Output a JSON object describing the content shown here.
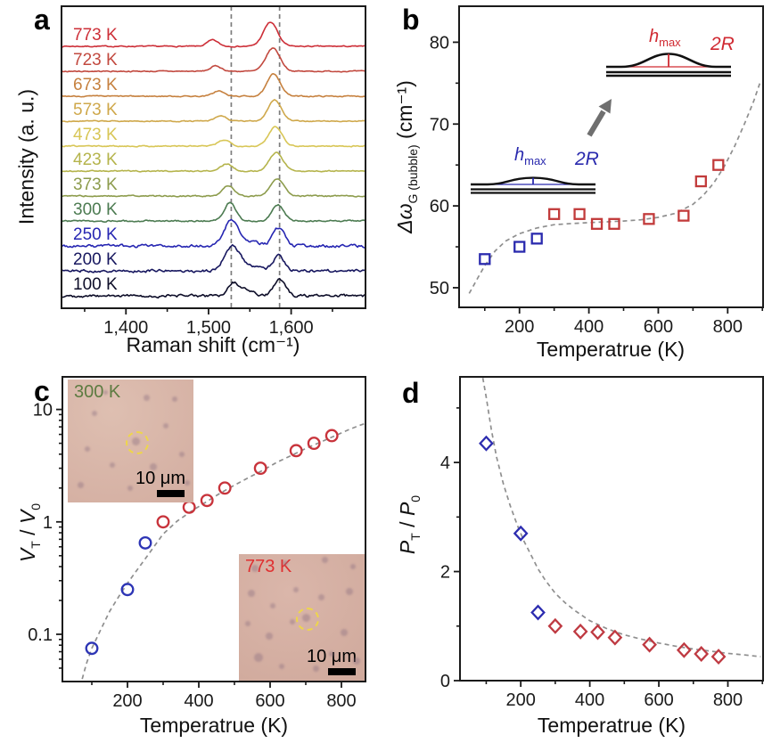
{
  "figure": {
    "background": "#ffffff"
  },
  "panels": {
    "a": {
      "letter": "a",
      "chart_data": {
        "type": "line",
        "title": "",
        "xlabel": "Raman shift (cm⁻¹)",
        "ylabel": "Intensity (a. u.)",
        "xlim": [
          1322,
          1690
        ],
        "xticks": [
          {
            "v": 1400,
            "label": "1,400"
          },
          {
            "v": 1500,
            "label": "1,500"
          },
          {
            "v": 1600,
            "label": "1,600"
          }
        ],
        "xminor": [
          1350,
          1450,
          1550,
          1650
        ],
        "guides_x": [
          1527.5,
          1586
        ],
        "series_note": "stacked Raman spectra, top to bottom; peaks = [center cm-1, width, rel height]",
        "series": [
          {
            "label": "773 K",
            "color": "#cd2f38",
            "noise": 0.5,
            "peaks": [
              [
                1505,
                6.5,
                7
              ],
              [
                1575,
                8.5,
                27
              ]
            ]
          },
          {
            "label": "723 K",
            "color": "#c2493f",
            "noise": 0.5,
            "peaks": [
              [
                1509,
                6.5,
                6
              ],
              [
                1578,
                8.5,
                26
              ]
            ]
          },
          {
            "label": "673 K",
            "color": "#c6813f",
            "noise": 0.5,
            "peaks": [
              [
                1512,
                6.5,
                6
              ],
              [
                1579,
                8,
                25
              ]
            ]
          },
          {
            "label": "573 K",
            "color": "#cfa84b",
            "noise": 0.5,
            "peaks": [
              [
                1515,
                6.5,
                6
              ],
              [
                1580,
                8,
                24
              ]
            ]
          },
          {
            "label": "473 K",
            "color": "#d8c656",
            "noise": 0.55,
            "peaks": [
              [
                1519,
                7,
                7
              ],
              [
                1581,
                8,
                22
              ]
            ]
          },
          {
            "label": "423 K",
            "color": "#b5b44c",
            "noise": 0.55,
            "peaks": [
              [
                1522,
                7,
                8
              ],
              [
                1582,
                8,
                21
              ]
            ]
          },
          {
            "label": "373 K",
            "color": "#8d9c4d",
            "noise": 0.6,
            "peaks": [
              [
                1524,
                7,
                12
              ],
              [
                1583,
                8,
                20
              ]
            ]
          },
          {
            "label": "300 K",
            "color": "#4c7b51",
            "noise": 0.7,
            "peaks": [
              [
                1526,
                7,
                21
              ],
              [
                1584,
                7,
                18
              ]
            ]
          },
          {
            "label": "250 K",
            "color": "#2626b2",
            "noise": 1.3,
            "peaks": [
              [
                1527,
                8,
                27
              ],
              [
                1545,
                13,
                6
              ],
              [
                1585,
                7,
                20
              ]
            ]
          },
          {
            "label": "200 K",
            "color": "#17175f",
            "noise": 1.3,
            "peaks": [
              [
                1528,
                9,
                26
              ],
              [
                1548,
                13,
                6
              ],
              [
                1585,
                7,
                17
              ]
            ]
          },
          {
            "label": "100 K",
            "color": "#0d0d28",
            "noise": 1.3,
            "peaks": [
              [
                1529,
                6,
                13
              ],
              [
                1544,
                9,
                8
              ],
              [
                1586,
                7,
                18
              ]
            ]
          }
        ]
      }
    },
    "b": {
      "letter": "b",
      "ylabel_parts": {
        "prefix": "Δω",
        "sub": "G (bubble)",
        "suffix": " (cm⁻¹)"
      },
      "bubble_insets": {
        "lower": {
          "color": "#2a2aae",
          "h_sym": "h",
          "h_sub": "max",
          "diameter_label": "2R"
        },
        "upper": {
          "color": "#d02a32",
          "h_sym": "h",
          "h_sub": "max",
          "diameter_label": "2R"
        }
      },
      "chart_data": {
        "type": "scatter",
        "marker": "square",
        "xlabel": "Temperatrue (K)",
        "ylabel": "Δω_G (bubble) (cm⁻¹)",
        "xlim": [
          26,
          902
        ],
        "ylim": [
          47.6,
          84.4
        ],
        "xticks": [
          {
            "v": 200,
            "label": "200"
          },
          {
            "v": 400,
            "label": "400"
          },
          {
            "v": 600,
            "label": "600"
          },
          {
            "v": 800,
            "label": "800"
          }
        ],
        "xminor": [
          100,
          300,
          500,
          700,
          900
        ],
        "yticks": [
          {
            "v": 50,
            "label": "50"
          },
          {
            "v": 60,
            "label": "60"
          },
          {
            "v": 70,
            "label": "70"
          },
          {
            "v": 80,
            "label": "80"
          }
        ],
        "yminor": [
          55,
          65,
          75
        ],
        "series": [
          {
            "color": "#2a2aae",
            "points": [
              [
                100,
                53.5
              ],
              [
                200,
                55.0
              ],
              [
                250,
                56.0
              ]
            ]
          },
          {
            "color": "#c23b3b",
            "points": [
              [
                300,
                59.0
              ],
              [
                373,
                59.0
              ],
              [
                423,
                57.8
              ],
              [
                473,
                57.8
              ],
              [
                573,
                58.4
              ],
              [
                673,
                58.8
              ],
              [
                723,
                63.0
              ],
              [
                773,
                65.0
              ]
            ]
          }
        ],
        "fit": [
          [
            55,
            49.3
          ],
          [
            80,
            51.2
          ],
          [
            100,
            52.7
          ],
          [
            130,
            54.5
          ],
          [
            160,
            55.7
          ],
          [
            200,
            56.6
          ],
          [
            250,
            57.3
          ],
          [
            300,
            57.7
          ],
          [
            350,
            57.85
          ],
          [
            400,
            57.95
          ],
          [
            450,
            58.05
          ],
          [
            500,
            58.15
          ],
          [
            550,
            58.3
          ],
          [
            600,
            58.6
          ],
          [
            650,
            59.1
          ],
          [
            700,
            60.2
          ],
          [
            730,
            61.3
          ],
          [
            760,
            62.8
          ],
          [
            790,
            64.8
          ],
          [
            820,
            67.3
          ],
          [
            850,
            70.2
          ],
          [
            875,
            72.8
          ],
          [
            895,
            75.3
          ]
        ]
      }
    },
    "c": {
      "letter": "c",
      "ylabel_parts": {
        "p1": "V",
        "s1": "T",
        "mid": " / ",
        "p2": "V",
        "s2": "0"
      },
      "insets": [
        {
          "temp_label": "300 K",
          "label_color": "#5d7b41",
          "scale_label": "10 μm"
        },
        {
          "temp_label": "773 K",
          "label_color": "#e02f30",
          "scale_label": "10 μm"
        }
      ],
      "chart_data": {
        "type": "scatter",
        "marker": "circle",
        "xlabel": "Temperatrue (K)",
        "ylabel": "V_T / V_0",
        "xlim": [
          17.5,
          867.5
        ],
        "ylim": [
          0.038,
          19.5
        ],
        "ylog": true,
        "xticks": [
          {
            "v": 200,
            "label": "200"
          },
          {
            "v": 400,
            "label": "400"
          },
          {
            "v": 600,
            "label": "600"
          },
          {
            "v": 800,
            "label": "800"
          }
        ],
        "xminor": [
          100,
          300,
          500,
          700
        ],
        "yticks": [
          {
            "v": 0.1,
            "label": "0.1"
          },
          {
            "v": 1,
            "label": "1"
          },
          {
            "v": 10,
            "label": "10"
          }
        ],
        "yminor": [
          0.05,
          0.06,
          0.07,
          0.08,
          0.09,
          0.2,
          0.3,
          0.4,
          0.5,
          0.6,
          0.7,
          0.8,
          0.9,
          2,
          3,
          4,
          5,
          6,
          7,
          8,
          9
        ],
        "series": [
          {
            "color": "#2d35b5",
            "points": [
              [
                100,
                0.075
              ],
              [
                200,
                0.25
              ],
              [
                250,
                0.65
              ]
            ]
          },
          {
            "color": "#c8333b",
            "points": [
              [
                300,
                1.0
              ],
              [
                373,
                1.35
              ],
              [
                423,
                1.55
              ],
              [
                473,
                2.0
              ],
              [
                573,
                3.0
              ],
              [
                673,
                4.3
              ],
              [
                723,
                5.0
              ],
              [
                773,
                5.85
              ]
            ]
          }
        ],
        "fit": [
          [
            73,
            0.04
          ],
          [
            85,
            0.055
          ],
          [
            100,
            0.075
          ],
          [
            125,
            0.11
          ],
          [
            150,
            0.16
          ],
          [
            175,
            0.215
          ],
          [
            200,
            0.285
          ],
          [
            230,
            0.385
          ],
          [
            260,
            0.52
          ],
          [
            300,
            0.78
          ],
          [
            340,
            1.02
          ],
          [
            380,
            1.25
          ],
          [
            420,
            1.5
          ],
          [
            460,
            1.8
          ],
          [
            500,
            2.12
          ],
          [
            540,
            2.48
          ],
          [
            580,
            2.88
          ],
          [
            620,
            3.4
          ],
          [
            660,
            3.9
          ],
          [
            700,
            4.5
          ],
          [
            740,
            5.1
          ],
          [
            780,
            5.8
          ],
          [
            820,
            6.6
          ],
          [
            850,
            7.2
          ],
          [
            866,
            7.5
          ]
        ]
      }
    },
    "d": {
      "letter": "d",
      "ylabel_parts": {
        "p1": "P",
        "s1": "T",
        "mid": " / ",
        "p2": "P",
        "s2": "0"
      },
      "chart_data": {
        "type": "scatter",
        "marker": "diamond",
        "xlabel": "Temperatrue (K)",
        "ylabel": "P_T / P_0",
        "xlim": [
          24,
          902
        ],
        "ylim": [
          0,
          5.57
        ],
        "xticks": [
          {
            "v": 200,
            "label": "200"
          },
          {
            "v": 400,
            "label": "400"
          },
          {
            "v": 600,
            "label": "600"
          },
          {
            "v": 800,
            "label": "800"
          }
        ],
        "xminor": [
          100,
          300,
          500,
          700,
          900
        ],
        "yticks": [
          {
            "v": 0,
            "label": "0"
          },
          {
            "v": 2,
            "label": "2"
          },
          {
            "v": 4,
            "label": "4"
          }
        ],
        "yminor": [
          1,
          3,
          5
        ],
        "series": [
          {
            "color": "#2d2db0",
            "points": [
              [
                100,
                4.35
              ],
              [
                200,
                2.7
              ],
              [
                250,
                1.25
              ]
            ]
          },
          {
            "color": "#bf3a42",
            "points": [
              [
                300,
                1.0
              ],
              [
                373,
                0.9
              ],
              [
                423,
                0.89
              ],
              [
                473,
                0.79
              ],
              [
                573,
                0.66
              ],
              [
                673,
                0.56
              ],
              [
                723,
                0.49
              ],
              [
                773,
                0.44
              ]
            ]
          }
        ],
        "fit": [
          [
            90,
            5.55
          ],
          [
            100,
            5.2
          ],
          [
            115,
            4.6
          ],
          [
            130,
            4.1
          ],
          [
            150,
            3.6
          ],
          [
            170,
            3.2
          ],
          [
            190,
            2.85
          ],
          [
            210,
            2.55
          ],
          [
            230,
            2.3
          ],
          [
            250,
            2.05
          ],
          [
            270,
            1.85
          ],
          [
            300,
            1.6
          ],
          [
            330,
            1.42
          ],
          [
            360,
            1.27
          ],
          [
            400,
            1.1
          ],
          [
            450,
            0.95
          ],
          [
            500,
            0.84
          ],
          [
            550,
            0.76
          ],
          [
            600,
            0.69
          ],
          [
            650,
            0.63
          ],
          [
            700,
            0.58
          ],
          [
            750,
            0.54
          ],
          [
            800,
            0.5
          ],
          [
            850,
            0.47
          ],
          [
            895,
            0.44
          ]
        ]
      }
    }
  }
}
